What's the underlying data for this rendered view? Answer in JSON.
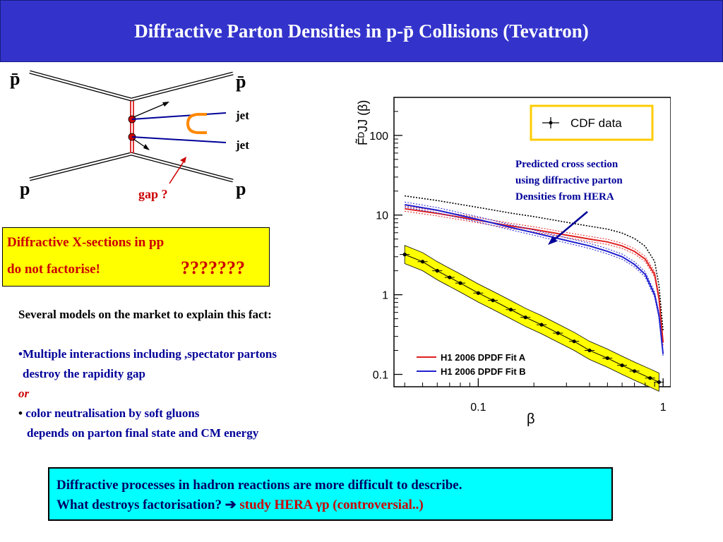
{
  "slide": {
    "title": "Diffractive Parton Densities in p-p̄ Collisions (Tevatron)"
  },
  "feynman": {
    "pbar_left": "p̄",
    "pbar_right": "p̄",
    "p_left": "p",
    "p_right": "p",
    "jet1": "jet",
    "jet2": "jet",
    "gap_label": "gap ?"
  },
  "callout": {
    "line1": "Diffractive X-sections in pp",
    "line2": "do not factorise!",
    "marks": "???????"
  },
  "models": {
    "intro": "Several models on the market to explain this fact:",
    "bullet1_line1": "•Multiple interactions including ,spectator partons",
    "bullet1_line2": "destroy the  rapidity gap",
    "or": "or",
    "bullet2_dot": "•",
    "bullet2_line1": "color neutralisation by soft gluons",
    "bullet2_line2": "depends on parton final state and CM energy"
  },
  "conclusion": {
    "line1": "Diffractive processes in hadron reactions are more difficult to describe.",
    "line2_prefix": "What destroys factorisation? ",
    "arrow": "➔",
    "line2_red": "study HERA γp  (controversial..)"
  },
  "prediction_note": {
    "line1": "Predicted cross section",
    "line2": "using  diffractive parton",
    "line3": "Densities from HERA"
  },
  "chart_data": {
    "type": "line",
    "xlabel": "β",
    "ylabel": "F̃ᴰJJ (β)",
    "xscale": "log",
    "yscale": "log",
    "xlim": [
      0.035,
      1.1
    ],
    "ylim": [
      0.07,
      300
    ],
    "x_ticks": [
      "0.1",
      "1"
    ],
    "y_ticks": [
      "0.1",
      "1",
      "10",
      "100"
    ],
    "legend_data": "CDF data",
    "legend_fits": [
      "H1 2006 DPDF Fit A",
      "H1 2006 DPDF Fit B"
    ],
    "colors": {
      "fitA": "#e02020",
      "fitB": "#2020d0",
      "data_band": "#ffff00",
      "black": "#000000"
    },
    "series": [
      {
        "name": "CDF data",
        "x": [
          0.04,
          0.05,
          0.06,
          0.07,
          0.08,
          0.1,
          0.12,
          0.15,
          0.18,
          0.22,
          0.27,
          0.33,
          0.4,
          0.5,
          0.6,
          0.7,
          0.85,
          0.95
        ],
        "values": [
          3.2,
          2.6,
          2.0,
          1.65,
          1.4,
          1.05,
          0.85,
          0.65,
          0.52,
          0.42,
          0.33,
          0.26,
          0.2,
          0.16,
          0.13,
          0.11,
          0.09,
          0.08
        ]
      },
      {
        "name": "H1 2006 DPDF Fit A",
        "x": [
          0.04,
          0.06,
          0.1,
          0.15,
          0.2,
          0.3,
          0.4,
          0.5,
          0.6,
          0.7,
          0.8,
          0.9,
          0.95,
          1.0
        ],
        "values": [
          12,
          10.5,
          8.6,
          7.3,
          6.6,
          5.6,
          5.0,
          4.6,
          4.1,
          3.5,
          2.8,
          1.8,
          0.9,
          0.25
        ]
      },
      {
        "name": "H1 2006 DPDF Fit B",
        "x": [
          0.04,
          0.06,
          0.1,
          0.15,
          0.2,
          0.3,
          0.4,
          0.5,
          0.6,
          0.7,
          0.8,
          0.9,
          0.95,
          1.0
        ],
        "values": [
          13.5,
          11.5,
          8.8,
          7.0,
          6.0,
          4.8,
          4.1,
          3.5,
          3.0,
          2.4,
          1.8,
          1.0,
          0.55,
          0.18
        ]
      }
    ]
  }
}
